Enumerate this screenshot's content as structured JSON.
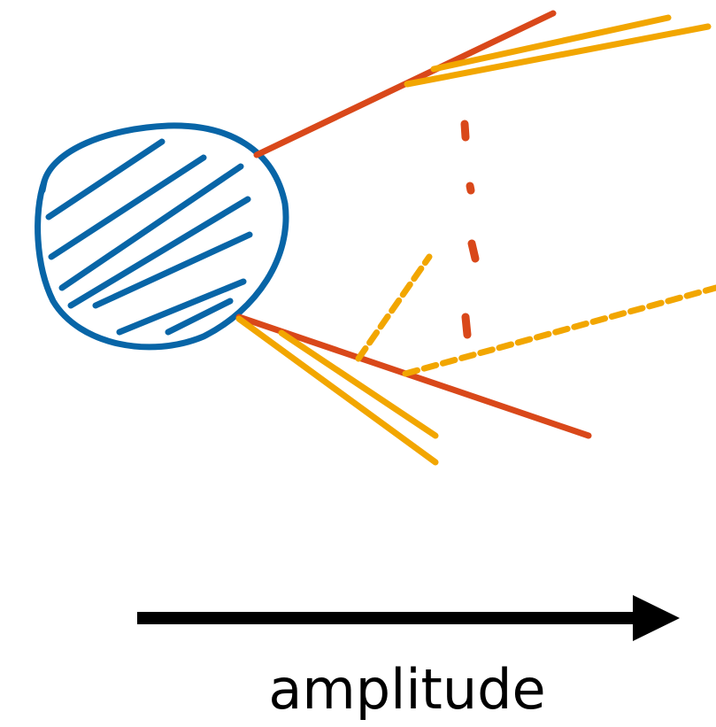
{
  "labels": {
    "axis": "amplitude"
  }
}
